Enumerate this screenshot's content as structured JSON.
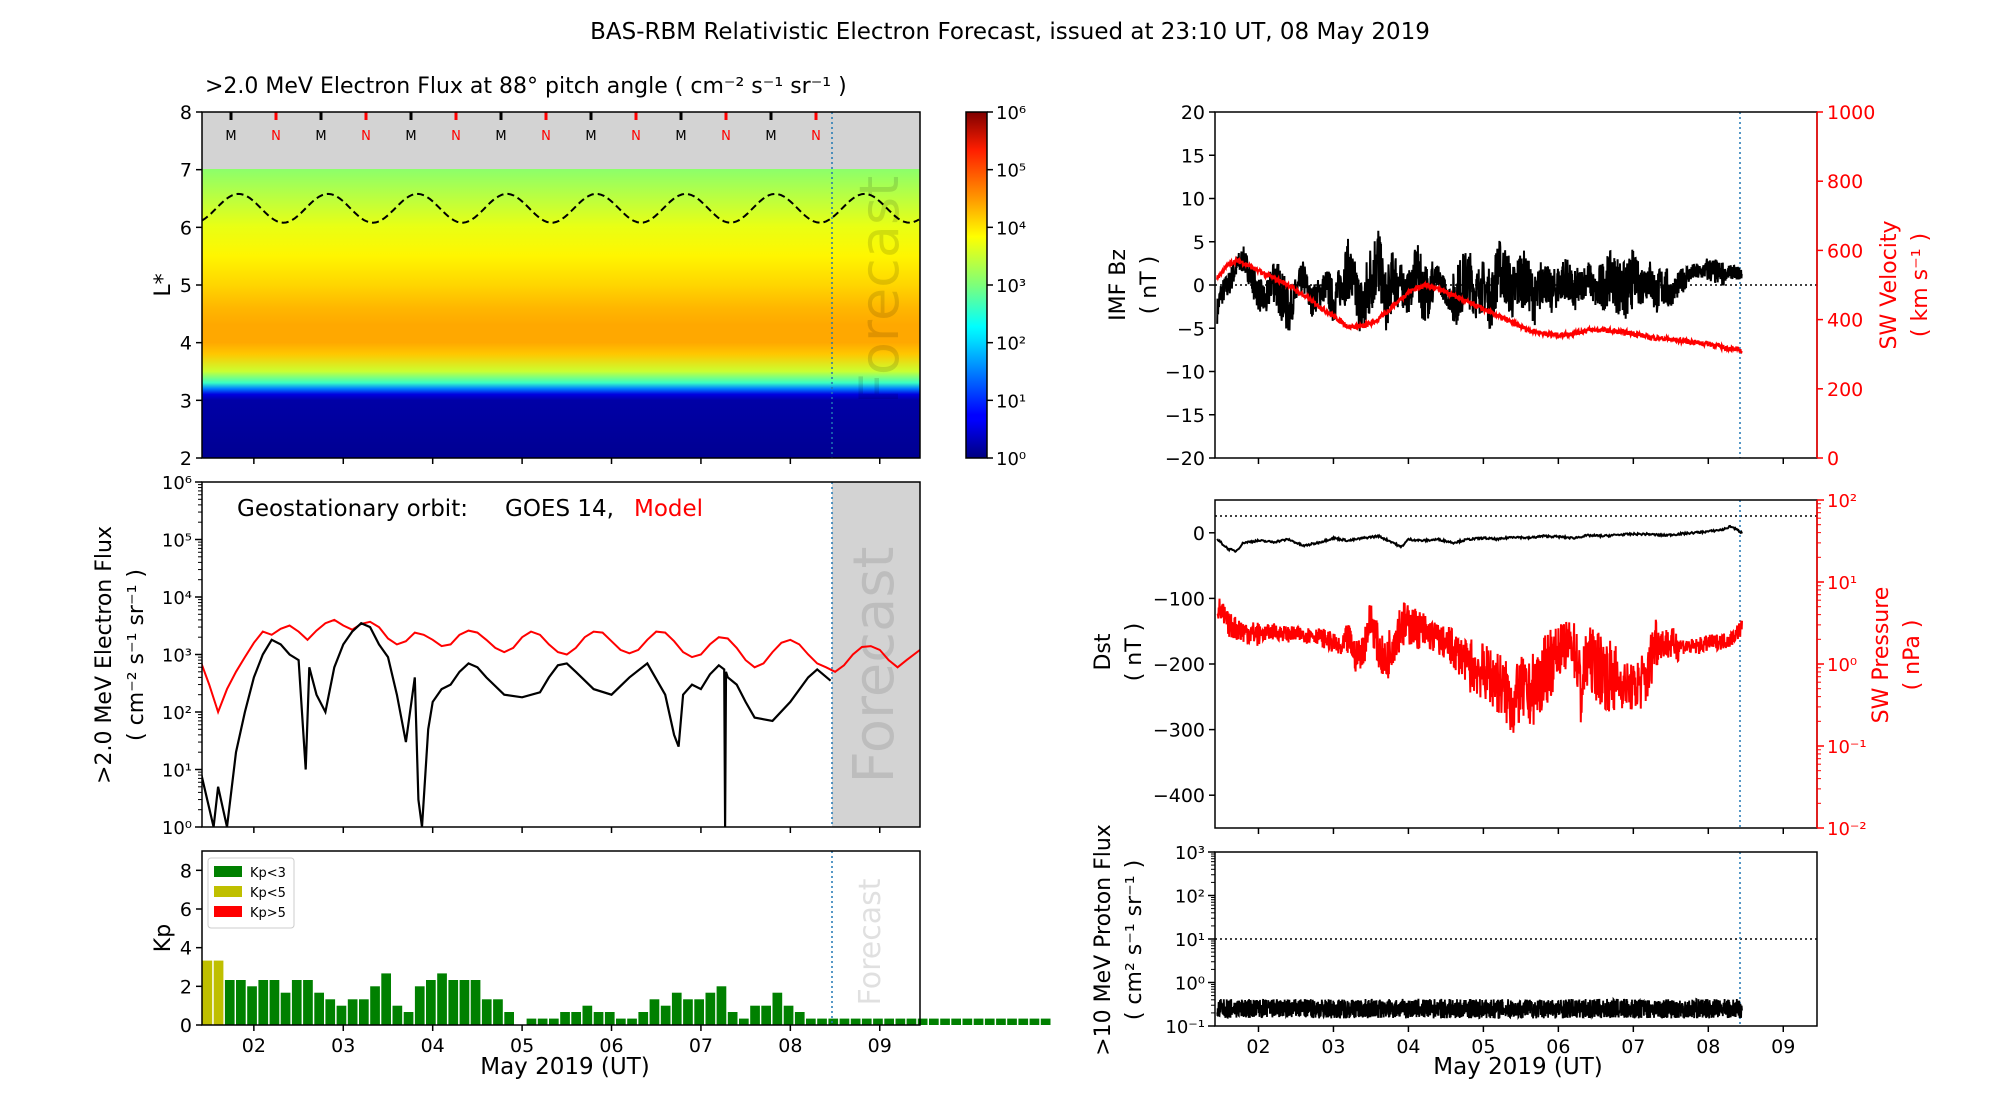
{
  "figure": {
    "title": "BAS-RBM Relativistic Electron Forecast, issued at 23:10 UT, 08 May 2019",
    "xlabel": "May 2019 (UT)"
  },
  "chart_data": [
    {
      "id": "flux-map",
      "type": "heatmap",
      "title": ">2.0 MeV Electron Flux at 88° pitch angle ( cm⁻² s⁻¹ sr⁻¹ )",
      "ylabel": "L*",
      "ylim": [
        2,
        8
      ],
      "y_ticks": [
        2,
        3,
        4,
        5,
        6,
        7,
        8
      ],
      "colorbar": {
        "scale": "log",
        "range_exp": [
          0,
          6
        ],
        "tick_exps": [
          0,
          1,
          2,
          3,
          4,
          5,
          6
        ],
        "colormap": "jet"
      },
      "profile_L": [
        2,
        3.0,
        3.1,
        3.2,
        3.3,
        3.5,
        3.8,
        4.0,
        4.3,
        4.6,
        5.0,
        5.5,
        6.0,
        6.5,
        7.0
      ],
      "profile_log_flux": [
        0.1,
        0.2,
        0.5,
        1.5,
        2.6,
        3.5,
        4.2,
        4.4,
        4.4,
        4.3,
        4.1,
        3.9,
        3.7,
        3.4,
        3.1
      ],
      "contour_L_range": [
        6.08,
        6.58
      ],
      "top_markers": [
        "M",
        "N",
        "M",
        "N",
        "M",
        "N",
        "M",
        "N",
        "M",
        "N",
        "M",
        "N",
        "M",
        "N"
      ],
      "annotation": "Forecast"
    },
    {
      "id": "geo-flux",
      "type": "line",
      "ylabel": [
        ">2.0 MeV Electron Flux",
        "( cm⁻² s⁻¹ sr⁻¹ )"
      ],
      "yscale": "log",
      "ylim_exp": [
        0,
        6
      ],
      "legend": {
        "prefix": "Geostationary orbit:",
        "goes": "GOES 14,",
        "model": "Model"
      },
      "series": [
        {
          "name": "GOES 14",
          "color": "#000000",
          "x": [
            1.4,
            1.55,
            1.6,
            1.7,
            1.8,
            1.9,
            2.0,
            2.1,
            2.2,
            2.3,
            2.4,
            2.5,
            2.58,
            2.62,
            2.7,
            2.8,
            2.9,
            3.0,
            3.1,
            3.2,
            3.3,
            3.4,
            3.5,
            3.6,
            3.7,
            3.8,
            3.84,
            3.88,
            3.95,
            4.0,
            4.1,
            4.2,
            4.3,
            4.4,
            4.5,
            4.6,
            4.8,
            5.0,
            5.2,
            5.3,
            5.4,
            5.5,
            5.6,
            5.8,
            6.0,
            6.2,
            6.4,
            6.6,
            6.7,
            6.75,
            6.8,
            6.9,
            7.0,
            7.1,
            7.2,
            7.26,
            7.27,
            7.28,
            7.3,
            7.4,
            7.5,
            7.6,
            7.8,
            8.0,
            8.2,
            8.3,
            8.45
          ],
          "y": [
            10,
            1,
            5,
            1,
            20,
            100,
            400,
            1000,
            1800,
            1500,
            1000,
            800,
            10,
            600,
            200,
            100,
            600,
            1500,
            2500,
            3500,
            3000,
            1500,
            900,
            200,
            30,
            400,
            3,
            1,
            50,
            150,
            250,
            300,
            500,
            700,
            600,
            400,
            200,
            180,
            220,
            400,
            650,
            700,
            500,
            250,
            200,
            400,
            700,
            200,
            40,
            25,
            200,
            300,
            250,
            450,
            650,
            550,
            1,
            500,
            400,
            300,
            150,
            80,
            70,
            150,
            400,
            550,
            350
          ]
        },
        {
          "name": "Model",
          "color": "#ff0000",
          "x": [
            1.4,
            1.5,
            1.6,
            1.7,
            1.8,
            1.9,
            2.0,
            2.1,
            2.2,
            2.3,
            2.4,
            2.5,
            2.6,
            2.7,
            2.8,
            2.9,
            3.0,
            3.1,
            3.2,
            3.3,
            3.4,
            3.5,
            3.6,
            3.7,
            3.8,
            3.9,
            4.0,
            4.1,
            4.2,
            4.3,
            4.4,
            4.5,
            4.6,
            4.7,
            4.8,
            4.9,
            5.0,
            5.1,
            5.2,
            5.3,
            5.4,
            5.5,
            5.6,
            5.7,
            5.8,
            5.9,
            6.0,
            6.1,
            6.2,
            6.3,
            6.4,
            6.5,
            6.6,
            6.7,
            6.8,
            6.9,
            7.0,
            7.1,
            7.2,
            7.3,
            7.4,
            7.5,
            7.6,
            7.7,
            7.8,
            7.9,
            8.0,
            8.1,
            8.2,
            8.3,
            8.4,
            8.5,
            8.6,
            8.7,
            8.8,
            8.9,
            9.0,
            9.1,
            9.2,
            9.3,
            9.45
          ],
          "y": [
            800,
            300,
            100,
            250,
            500,
            900,
            1600,
            2500,
            2200,
            2800,
            3200,
            2500,
            1800,
            2600,
            3500,
            4000,
            3200,
            2700,
            3400,
            3700,
            3000,
            1900,
            1500,
            1700,
            2400,
            2200,
            1800,
            1400,
            1500,
            2200,
            2600,
            2400,
            1800,
            1300,
            1100,
            1300,
            2000,
            2500,
            2200,
            1500,
            1100,
            1000,
            1300,
            2000,
            2500,
            2400,
            1700,
            1200,
            1050,
            1200,
            1800,
            2500,
            2400,
            1700,
            1100,
            900,
            1000,
            1500,
            2000,
            1900,
            1300,
            800,
            600,
            700,
            1100,
            1600,
            1800,
            1500,
            1000,
            700,
            600,
            500,
            650,
            1000,
            1350,
            1400,
            1200,
            800,
            600,
            800,
            1200
          ]
        }
      ],
      "annotation": "Forecast"
    },
    {
      "id": "kp",
      "type": "bar",
      "ylabel": "Kp",
      "ylim": [
        0,
        9
      ],
      "y_ticks": [
        0,
        2,
        4,
        6,
        8
      ],
      "legend_entries": [
        {
          "label": "Kp<3",
          "color": "#008000"
        },
        {
          "label": "Kp<5",
          "color": "#bfbf00"
        },
        {
          "label": "Kp>5",
          "color": "#ff0000"
        }
      ],
      "values": [
        3.33,
        3.33,
        2.33,
        2.33,
        2.0,
        2.33,
        2.33,
        1.67,
        2.33,
        2.33,
        1.67,
        1.33,
        1.0,
        1.33,
        1.33,
        2.0,
        2.67,
        1.0,
        0.67,
        2.0,
        2.33,
        2.67,
        2.33,
        2.33,
        2.33,
        1.33,
        1.33,
        0.67,
        0.0,
        0.33,
        0.33,
        0.33,
        0.67,
        0.67,
        1.0,
        0.67,
        0.67,
        0.33,
        0.33,
        0.67,
        1.33,
        1.0,
        1.67,
        1.33,
        1.33,
        1.67,
        2.0,
        0.67,
        0.33,
        1.0,
        1.0,
        1.67,
        1.0,
        0.67,
        0.33,
        0.33,
        0.33,
        0.33,
        0.33,
        0.33,
        0.33,
        0.33,
        0.33,
        0.33,
        0.33,
        0.33,
        0.33,
        0.33,
        0.33,
        0.33,
        0.33,
        0.33,
        0.33,
        0.33,
        0.33,
        0.33
      ],
      "annotation": "Forecast"
    },
    {
      "id": "imf-bz",
      "type": "line",
      "ylabel": [
        "IMF Bz",
        "( nT )"
      ],
      "ylim": [
        -20,
        20
      ],
      "y_ticks": [
        -20,
        -15,
        -10,
        -5,
        0,
        5,
        10,
        15,
        20
      ],
      "y2label": [
        "SW Velocity",
        "( km s⁻¹ )"
      ],
      "y2lim": [
        0,
        1000
      ],
      "y2_ticks": [
        0,
        200,
        400,
        600,
        800,
        1000
      ],
      "series": [
        {
          "name": "IMF Bz",
          "color": "#000000",
          "axis": "left",
          "x": [
            1.45,
            1.5,
            1.6,
            1.7,
            1.8,
            1.9,
            2.0,
            2.1,
            2.2,
            2.3,
            2.4,
            2.5,
            2.6,
            2.7,
            2.8,
            2.9,
            3.0,
            3.1,
            3.2,
            3.3,
            3.4,
            3.5,
            3.6,
            3.7,
            3.8,
            3.9,
            4.0,
            4.1,
            4.2,
            4.3,
            4.4,
            4.5,
            4.6,
            4.7,
            4.8,
            4.9,
            5.0,
            5.1,
            5.2,
            5.3,
            5.4,
            5.5,
            5.6,
            5.7,
            5.8,
            5.9,
            6.0,
            6.1,
            6.2,
            6.3,
            6.4,
            6.5,
            6.6,
            6.7,
            6.8,
            6.9,
            7.0,
            7.1,
            7.2,
            7.3,
            7.4,
            7.5,
            7.6,
            7.7,
            7.8,
            7.9,
            8.0,
            8.1,
            8.2,
            8.3,
            8.45
          ],
          "y": [
            -3,
            -1,
            0,
            2,
            3,
            1,
            -1,
            -2,
            1,
            -1,
            -3,
            -1,
            1,
            -2,
            -1,
            0,
            -2,
            0,
            2,
            -1,
            -3,
            1,
            3,
            -2,
            1,
            0,
            -1,
            2,
            -1,
            0,
            1,
            -1,
            -2,
            0,
            1,
            -1,
            0,
            -2,
            2,
            1,
            -1,
            1,
            0,
            -2,
            1,
            -1,
            0,
            1,
            -1,
            0,
            1,
            -1,
            0,
            1,
            0,
            -1,
            1,
            0,
            1,
            -1,
            0,
            -1,
            0,
            1,
            1.5,
            1.5,
            1.8,
            1.5,
            1.2,
            1.5,
            1.3
          ],
          "noise": [
            1.5,
            1.5,
            2.0,
            3.0,
            2.0,
            1.8,
            2.5,
            3.5,
            4.5,
            3.5,
            2.5,
            3.5,
            1.5,
            3.5,
            3.0,
            3.5,
            3.5,
            3.0,
            2.5,
            2.5,
            2.0,
            3.0,
            3.5,
            2.5,
            2.5,
            1.5,
            1.0,
            1.5,
            0.8
          ]
        },
        {
          "name": "SW Velocity",
          "color": "#ff0000",
          "axis": "right",
          "x": [
            1.45,
            1.6,
            1.7,
            1.8,
            2.0,
            2.2,
            2.4,
            2.6,
            2.8,
            3.0,
            3.2,
            3.4,
            3.6,
            3.8,
            4.0,
            4.2,
            4.4,
            4.6,
            4.8,
            5.0,
            5.2,
            5.4,
            5.6,
            5.8,
            6.0,
            6.2,
            6.4,
            6.6,
            6.8,
            7.0,
            7.2,
            7.4,
            7.6,
            7.8,
            8.0,
            8.2,
            8.45
          ],
          "y": [
            520,
            560,
            570,
            565,
            540,
            520,
            500,
            470,
            440,
            410,
            380,
            380,
            400,
            440,
            480,
            500,
            490,
            470,
            450,
            430,
            410,
            390,
            370,
            360,
            355,
            360,
            370,
            370,
            365,
            360,
            350,
            345,
            340,
            335,
            330,
            320,
            310
          ]
        }
      ]
    },
    {
      "id": "dst",
      "type": "line",
      "ylabel": [
        "Dst",
        "( nT )"
      ],
      "ylim": [
        -450,
        50
      ],
      "y_ticks": [
        -400,
        -300,
        -200,
        -100,
        0
      ],
      "y2label": [
        "SW Pressure",
        "( nPa )"
      ],
      "y2scale": "log",
      "y2lim_exp": [
        -2,
        2
      ],
      "series": [
        {
          "name": "Dst",
          "color": "#000000",
          "axis": "left",
          "x": [
            1.45,
            1.6,
            1.7,
            1.8,
            2.0,
            2.2,
            2.4,
            2.6,
            2.8,
            3.0,
            3.2,
            3.4,
            3.6,
            3.8,
            3.9,
            4.0,
            4.2,
            4.4,
            4.6,
            4.8,
            5.0,
            5.2,
            5.4,
            5.6,
            5.8,
            6.0,
            6.2,
            6.4,
            6.6,
            6.8,
            7.0,
            7.2,
            7.4,
            7.6,
            7.8,
            8.0,
            8.2,
            8.3,
            8.45
          ],
          "y": [
            -10,
            -25,
            -28,
            -15,
            -12,
            -14,
            -10,
            -20,
            -15,
            -8,
            -12,
            -8,
            -5,
            -15,
            -22,
            -10,
            -12,
            -10,
            -15,
            -10,
            -8,
            -10,
            -6,
            -8,
            -5,
            -6,
            -8,
            -4,
            -5,
            -3,
            -2,
            -2,
            -4,
            -2,
            0,
            2,
            5,
            10,
            0
          ]
        },
        {
          "name": "SW Pressure",
          "color": "#ff0000",
          "axis": "right",
          "x": [
            1.45,
            1.6,
            1.8,
            2.0,
            2.2,
            2.4,
            2.6,
            2.8,
            3.0,
            3.1,
            3.2,
            3.3,
            3.4,
            3.5,
            3.6,
            3.7,
            3.8,
            3.9,
            4.0,
            4.2,
            4.4,
            4.6,
            4.8,
            5.0,
            5.2,
            5.4,
            5.5,
            5.6,
            5.8,
            6.0,
            6.2,
            6.3,
            6.4,
            6.6,
            6.8,
            7.0,
            7.2,
            7.3,
            7.4,
            7.6,
            7.8,
            8.0,
            8.2,
            8.3,
            8.45
          ],
          "y": [
            5,
            3,
            2.5,
            2.3,
            2.5,
            2.3,
            2.3,
            2.2,
            1.8,
            1.5,
            2.0,
            1.2,
            1.5,
            3.5,
            1.5,
            1.0,
            2.0,
            3.0,
            3.0,
            2.5,
            2.0,
            1.5,
            1.0,
            0.8,
            0.6,
            0.3,
            0.5,
            0.4,
            0.7,
            1.5,
            1.8,
            0.4,
            1.2,
            0.8,
            0.6,
            0.5,
            0.7,
            2.0,
            1.8,
            1.7,
            1.6,
            1.8,
            1.9,
            2.0,
            2.8
          ],
          "noise": [
            0.15,
            0.15,
            0.1,
            0.1,
            0.1,
            0.12,
            0.2,
            0.25,
            0.3,
            0.25,
            0.2,
            0.25,
            0.35,
            0.4,
            0.4,
            0.45,
            0.3,
            0.4,
            0.45,
            0.3,
            0.35,
            0.2,
            0.1,
            0.1,
            0.1
          ]
        }
      ]
    },
    {
      "id": "proton",
      "type": "line",
      "ylabel": [
        ">10 MeV Proton Flux",
        "( cm² s⁻¹ sr⁻¹ )"
      ],
      "yscale": "log",
      "ylim_exp": [
        -1,
        3
      ],
      "threshold": 10,
      "series": [
        {
          "name": "Proton flux",
          "color": "#000000",
          "level": 0.25,
          "x_range": [
            1.45,
            8.45
          ]
        }
      ]
    }
  ],
  "x_axis": {
    "range": [
      1.42,
      9.45
    ],
    "tick_values": [
      2,
      3,
      4,
      5,
      6,
      7,
      8,
      9
    ],
    "tick_labels": [
      "02",
      "03",
      "04",
      "05",
      "06",
      "07",
      "08",
      "09"
    ],
    "forecast_start": 8.46
  }
}
